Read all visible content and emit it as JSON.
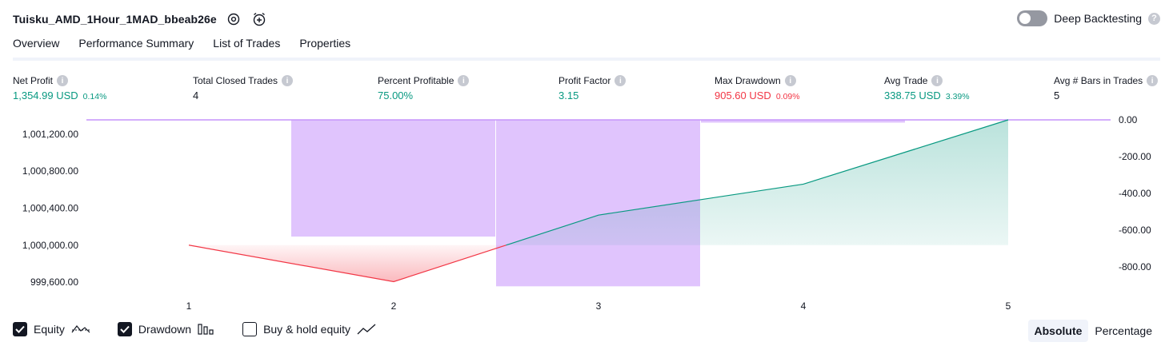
{
  "header": {
    "strategy_name": "Tuisku_AMD_1Hour_1MAD_bbeab26e",
    "deep_backtesting_label": "Deep Backtesting",
    "deep_backtesting_enabled": false
  },
  "tabs": [
    {
      "label": "Overview",
      "active": true
    },
    {
      "label": "Performance Summary",
      "active": false
    },
    {
      "label": "List of Trades",
      "active": false
    },
    {
      "label": "Properties",
      "active": false
    }
  ],
  "metrics": {
    "net_profit": {
      "label": "Net Profit",
      "value": "1,354.99 USD",
      "sub": "0.14%"
    },
    "total_closed_trades": {
      "label": "Total Closed Trades",
      "value": "4"
    },
    "percent_profitable": {
      "label": "Percent Profitable",
      "value": "75.00%"
    },
    "profit_factor": {
      "label": "Profit Factor",
      "value": "3.15"
    },
    "max_drawdown": {
      "label": "Max Drawdown",
      "value": "905.60 USD",
      "sub": "0.09%"
    },
    "avg_trade": {
      "label": "Avg Trade",
      "value": "338.75 USD",
      "sub": "3.39%"
    },
    "avg_bars": {
      "label": "Avg # Bars in Trades",
      "value": "5"
    }
  },
  "colors": {
    "profit": "#089981",
    "loss": "#f23645",
    "drawdown": "#c693fb",
    "text": "#131722",
    "muted": "#787b86"
  },
  "chart_data": {
    "type": "line",
    "x": [
      1,
      2,
      3,
      4,
      5
    ],
    "equity": {
      "name": "Equity",
      "baseline": 1000000,
      "values": [
        1000000,
        999605,
        1000325,
        1000660,
        1001355
      ]
    },
    "drawdown": {
      "name": "Drawdown",
      "bars": [
        {
          "from": 1.5,
          "to": 2.5,
          "value": -635
        },
        {
          "from": 2.5,
          "to": 3.5,
          "value": -905.6
        },
        {
          "from": 3.5,
          "to": 4.5,
          "value": -15
        },
        {
          "from": 4.5,
          "to": 5.5,
          "value": 0
        }
      ]
    },
    "left_axis": {
      "ticks": [
        1001200,
        1000800,
        1000400,
        1000000,
        999600
      ],
      "tick_labels": [
        "1,001,200.00",
        "1,000,800.00",
        "1,000,400.00",
        "1,000,000.00",
        "999,600.00"
      ],
      "range": [
        999540,
        1001355
      ]
    },
    "right_axis": {
      "ticks": [
        0,
        -200,
        -400,
        -600,
        -800
      ],
      "tick_labels": [
        "0.00",
        "-200.00",
        "-400.00",
        "-600.00",
        "-800.00"
      ],
      "range": [
        -913,
        0
      ]
    },
    "x_tick_labels": [
      "1",
      "2",
      "3",
      "4",
      "5"
    ],
    "x_range": [
      0.5,
      5.5
    ]
  },
  "legend": {
    "equity": {
      "label": "Equity",
      "checked": true,
      "icon": "equity-line-icon"
    },
    "drawdown": {
      "label": "Drawdown",
      "checked": true,
      "icon": "drawdown-bars-icon"
    },
    "buy_hold": {
      "label": "Buy & hold equity",
      "checked": false,
      "icon": "buy-hold-line-icon"
    }
  },
  "mode": {
    "absolute_label": "Absolute",
    "percentage_label": "Percentage",
    "selected": "Absolute"
  }
}
